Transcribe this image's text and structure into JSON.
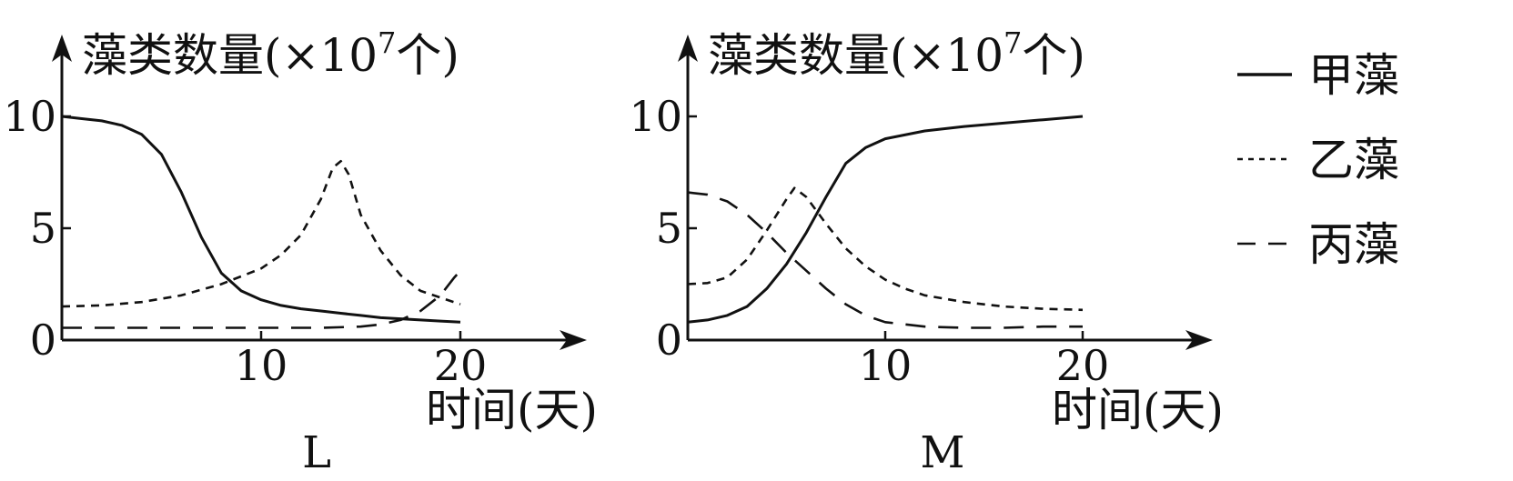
{
  "chart_data": [
    {
      "type": "line",
      "panel_label": "L",
      "ylabel_text": "藻类数量(×10",
      "ylabel_exp": "7",
      "ylabel_unit": "个)",
      "xlabel": "时间(天)",
      "xlim": [
        0,
        25
      ],
      "ylim": [
        0,
        12
      ],
      "xticks": [
        {
          "value": 10,
          "label": "10"
        },
        {
          "value": 20,
          "label": "20"
        }
      ],
      "yticks": [
        {
          "value": 0,
          "label": "0"
        },
        {
          "value": 5,
          "label": "5"
        },
        {
          "value": 10,
          "label": "10"
        }
      ],
      "series": [
        {
          "name": "甲藻",
          "style": "solid",
          "points": [
            [
              0,
              10
            ],
            [
              1,
              9.9
            ],
            [
              2,
              9.8
            ],
            [
              3,
              9.6
            ],
            [
              4,
              9.2
            ],
            [
              5,
              8.3
            ],
            [
              6,
              6.6
            ],
            [
              7,
              4.6
            ],
            [
              8,
              3.0
            ],
            [
              9,
              2.2
            ],
            [
              10,
              1.8
            ],
            [
              11,
              1.55
            ],
            [
              12,
              1.4
            ],
            [
              13,
              1.3
            ],
            [
              14,
              1.2
            ],
            [
              15,
              1.1
            ],
            [
              16,
              1.0
            ],
            [
              17,
              0.95
            ],
            [
              18,
              0.9
            ],
            [
              19,
              0.85
            ],
            [
              20,
              0.8
            ]
          ]
        },
        {
          "name": "乙藻",
          "style": "short-dash",
          "points": [
            [
              0,
              1.5
            ],
            [
              2,
              1.55
            ],
            [
              4,
              1.7
            ],
            [
              6,
              2.0
            ],
            [
              8,
              2.5
            ],
            [
              10,
              3.2
            ],
            [
              11,
              3.8
            ],
            [
              12,
              4.7
            ],
            [
              13,
              6.3
            ],
            [
              13.6,
              7.7
            ],
            [
              14,
              8.0
            ],
            [
              14.4,
              7.4
            ],
            [
              15,
              5.6
            ],
            [
              16,
              4.0
            ],
            [
              17,
              2.9
            ],
            [
              18,
              2.2
            ],
            [
              19,
              1.9
            ],
            [
              20,
              1.6
            ]
          ]
        },
        {
          "name": "丙藻",
          "style": "long-dash",
          "points": [
            [
              0,
              0.55
            ],
            [
              5,
              0.55
            ],
            [
              10,
              0.55
            ],
            [
              13,
              0.55
            ],
            [
              15,
              0.6
            ],
            [
              16,
              0.7
            ],
            [
              17,
              0.9
            ],
            [
              18,
              1.3
            ],
            [
              19,
              2.0
            ],
            [
              19.7,
              2.8
            ],
            [
              20,
              3.1
            ]
          ]
        }
      ]
    },
    {
      "type": "line",
      "panel_label": "M",
      "ylabel_text": "藻类数量(×10",
      "ylabel_exp": "7",
      "ylabel_unit": "个)",
      "xlabel": "时间(天)",
      "xlim": [
        0,
        25
      ],
      "ylim": [
        0,
        12
      ],
      "xticks": [
        {
          "value": 10,
          "label": "10"
        },
        {
          "value": 20,
          "label": "20"
        }
      ],
      "yticks": [
        {
          "value": 0,
          "label": "0"
        },
        {
          "value": 5,
          "label": "5"
        },
        {
          "value": 10,
          "label": "10"
        }
      ],
      "series": [
        {
          "name": "甲藻",
          "style": "solid",
          "points": [
            [
              0,
              0.8
            ],
            [
              1,
              0.9
            ],
            [
              2,
              1.1
            ],
            [
              3,
              1.5
            ],
            [
              4,
              2.3
            ],
            [
              5,
              3.4
            ],
            [
              6,
              4.8
            ],
            [
              7,
              6.4
            ],
            [
              8,
              7.9
            ],
            [
              9,
              8.6
            ],
            [
              10,
              9.0
            ],
            [
              12,
              9.35
            ],
            [
              14,
              9.55
            ],
            [
              16,
              9.7
            ],
            [
              18,
              9.85
            ],
            [
              20,
              10.0
            ]
          ]
        },
        {
          "name": "乙藻",
          "style": "short-dash",
          "points": [
            [
              0,
              2.5
            ],
            [
              1,
              2.55
            ],
            [
              2,
              2.8
            ],
            [
              3,
              3.6
            ],
            [
              4,
              4.9
            ],
            [
              5,
              6.3
            ],
            [
              5.4,
              6.8
            ],
            [
              6,
              6.4
            ],
            [
              7,
              5.2
            ],
            [
              8,
              4.1
            ],
            [
              9,
              3.3
            ],
            [
              10,
              2.7
            ],
            [
              11,
              2.3
            ],
            [
              12,
              2.0
            ],
            [
              14,
              1.7
            ],
            [
              16,
              1.5
            ],
            [
              18,
              1.4
            ],
            [
              20,
              1.35
            ]
          ]
        },
        {
          "name": "丙藻",
          "style": "long-dash",
          "points": [
            [
              0,
              6.6
            ],
            [
              1,
              6.5
            ],
            [
              2,
              6.2
            ],
            [
              3,
              5.6
            ],
            [
              4,
              4.8
            ],
            [
              5,
              3.9
            ],
            [
              6,
              3.1
            ],
            [
              7,
              2.3
            ],
            [
              8,
              1.6
            ],
            [
              9,
              1.1
            ],
            [
              10,
              0.8
            ],
            [
              12,
              0.6
            ],
            [
              14,
              0.55
            ],
            [
              16,
              0.55
            ],
            [
              18,
              0.6
            ],
            [
              20,
              0.6
            ]
          ]
        }
      ]
    }
  ],
  "legend": {
    "placement": "right",
    "items": [
      {
        "name": "甲藻",
        "style": "solid"
      },
      {
        "name": "乙藻",
        "style": "short-dash"
      },
      {
        "name": "丙藻",
        "style": "long-dash"
      }
    ]
  }
}
